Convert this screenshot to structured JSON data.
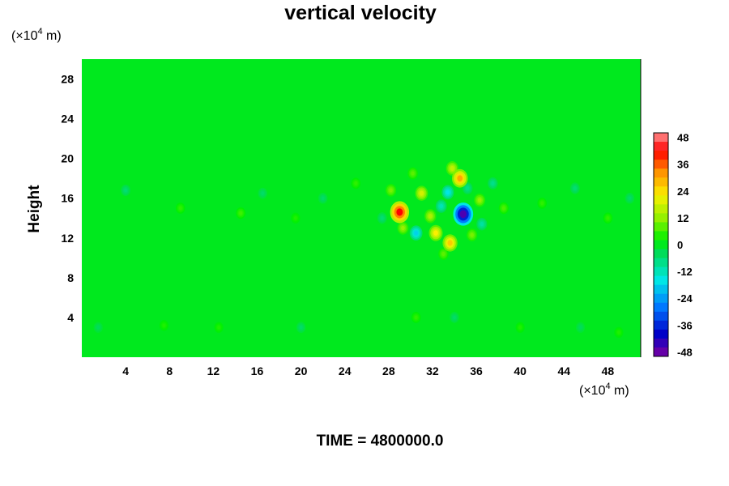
{
  "chart_data": {
    "type": "heatmap",
    "title": "vertical velocity",
    "ylabel": "Height",
    "x_unit": "(×10",
    "y_unit": "(×10",
    "unit_exponent": "4",
    "unit_suffix": " m)",
    "xlim": [
      0,
      51
    ],
    "ylim": [
      0,
      30
    ],
    "x_ticks": [
      4,
      8,
      12,
      16,
      20,
      24,
      28,
      32,
      36,
      40,
      44,
      48
    ],
    "y_ticks": [
      4,
      8,
      12,
      16,
      20,
      24,
      28
    ],
    "colorbar": {
      "range": [
        -50,
        50
      ],
      "ticks": [
        48,
        36,
        24,
        12,
        0,
        -12,
        -24,
        -36,
        -48
      ],
      "levels": 25
    },
    "footer": "TIME = 4800000.0",
    "colors": {
      "background_field": "#00f000",
      "positive_high": "#ff0000",
      "negative_high": "#0000e0"
    },
    "features": [
      {
        "x": 29.0,
        "y": 14.6,
        "value": 42
      },
      {
        "x": 34.8,
        "y": 14.4,
        "value": -46
      },
      {
        "x": 34.5,
        "y": 18.0,
        "value": 30
      },
      {
        "x": 33.6,
        "y": 11.5,
        "value": 26
      },
      {
        "x": 32.3,
        "y": 12.5,
        "value": 22
      },
      {
        "x": 31.0,
        "y": 16.5,
        "value": 18
      },
      {
        "x": 30.5,
        "y": 12.5,
        "value": -18
      },
      {
        "x": 33.4,
        "y": 16.6,
        "value": -16
      },
      {
        "x": 33.8,
        "y": 19.0,
        "value": 16
      },
      {
        "x": 31.8,
        "y": 14.2,
        "value": 14
      },
      {
        "x": 28.2,
        "y": 16.8,
        "value": 10
      },
      {
        "x": 36.3,
        "y": 15.8,
        "value": 12
      },
      {
        "x": 36.5,
        "y": 13.4,
        "value": -10
      },
      {
        "x": 29.3,
        "y": 13.0,
        "value": 12
      },
      {
        "x": 32.8,
        "y": 15.2,
        "value": -12
      },
      {
        "x": 35.6,
        "y": 12.3,
        "value": 10
      },
      {
        "x": 30.2,
        "y": 18.5,
        "value": 8
      },
      {
        "x": 37.5,
        "y": 17.5,
        "value": -8
      },
      {
        "x": 38.5,
        "y": 15.0,
        "value": 7
      },
      {
        "x": 27.4,
        "y": 14.0,
        "value": -6
      },
      {
        "x": 33.0,
        "y": 10.4,
        "value": 8
      },
      {
        "x": 35.2,
        "y": 17.0,
        "value": -8
      },
      {
        "x": 4.0,
        "y": 16.8,
        "value": -6
      },
      {
        "x": 9.0,
        "y": 15.0,
        "value": 5
      },
      {
        "x": 14.5,
        "y": 14.5,
        "value": 6
      },
      {
        "x": 16.5,
        "y": 16.5,
        "value": -5
      },
      {
        "x": 19.5,
        "y": 14.0,
        "value": 4
      },
      {
        "x": 22.0,
        "y": 16.0,
        "value": -5
      },
      {
        "x": 25.0,
        "y": 17.5,
        "value": 5
      },
      {
        "x": 42.0,
        "y": 15.5,
        "value": 5
      },
      {
        "x": 45.0,
        "y": 17.0,
        "value": -6
      },
      {
        "x": 48.0,
        "y": 14.0,
        "value": 5
      },
      {
        "x": 50.0,
        "y": 16.0,
        "value": -5
      },
      {
        "x": 1.5,
        "y": 3.0,
        "value": -4
      },
      {
        "x": 7.5,
        "y": 3.2,
        "value": 4
      },
      {
        "x": 12.5,
        "y": 3.0,
        "value": 4
      },
      {
        "x": 20.0,
        "y": 3.0,
        "value": -5
      },
      {
        "x": 30.5,
        "y": 4.0,
        "value": 5
      },
      {
        "x": 34.0,
        "y": 4.0,
        "value": -5
      },
      {
        "x": 40.0,
        "y": 3.0,
        "value": 4
      },
      {
        "x": 45.5,
        "y": 3.0,
        "value": -4
      },
      {
        "x": 49.0,
        "y": 2.5,
        "value": 4
      }
    ]
  }
}
